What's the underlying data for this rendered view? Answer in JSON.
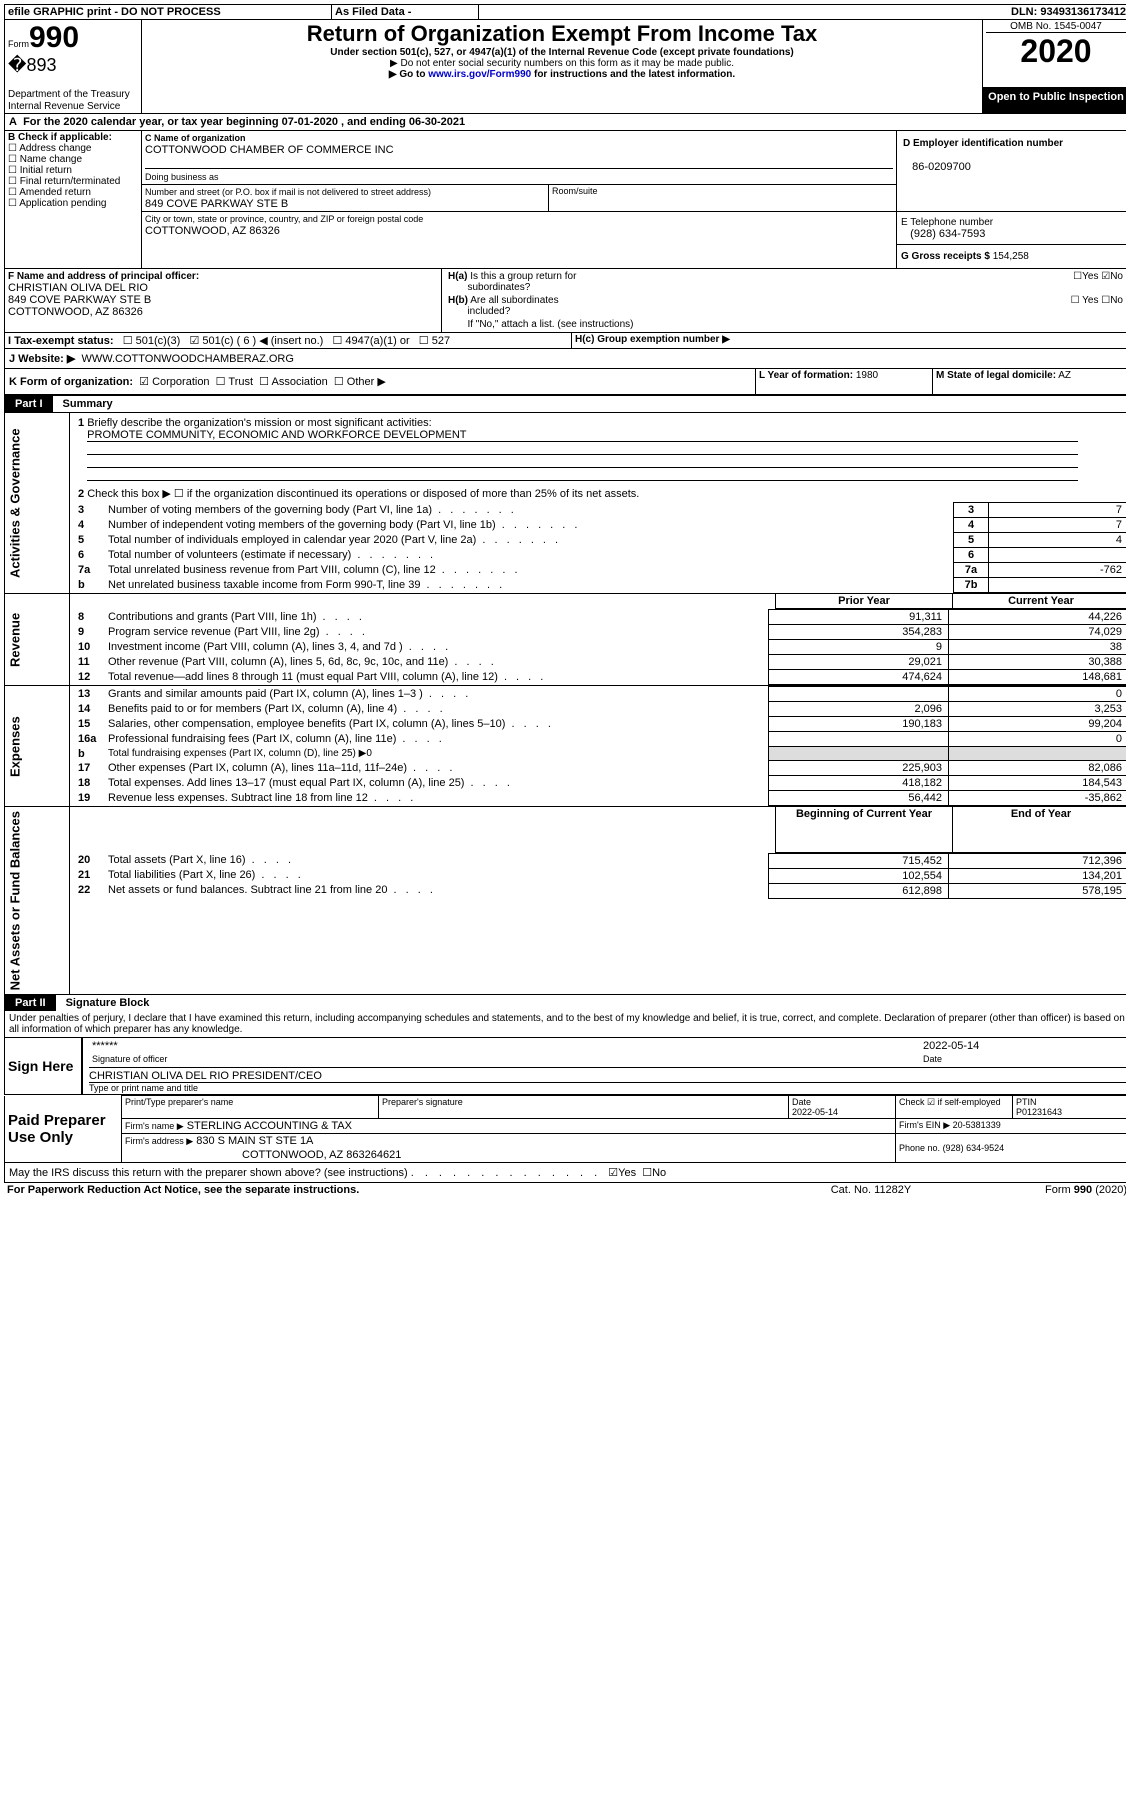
{
  "top_bar": {
    "efile": "efile GRAPHIC print - DO NOT PROCESS",
    "asfiled": "As Filed Data -",
    "dln_label": "DLN:",
    "dln": "93493136173412"
  },
  "header": {
    "form_label": "Form",
    "form_num": "990",
    "dept": "Department of the Treasury",
    "irs": "Internal Revenue Service",
    "title": "Return of Organization Exempt From Income Tax",
    "sub1": "Under section 501(c), 527, or 4947(a)(1) of the Internal Revenue Code (except private foundations)",
    "sub2": "▶ Do not enter social security numbers on this form as it may be made public.",
    "sub3_pre": "▶ Go to ",
    "sub3_link": "www.irs.gov/Form990",
    "sub3_post": " for instructions and the latest information.",
    "omb": "OMB No. 1545-0047",
    "year": "2020",
    "open": "Open to Public Inspection"
  },
  "A": {
    "text_pre": "For the 2020 calendar year, or tax year beginning ",
    "begin": "07-01-2020",
    "mid": " , and ending ",
    "end": "06-30-2021"
  },
  "B": {
    "label": "B Check if applicable:",
    "opts": [
      "Address change",
      "Name change",
      "Initial return",
      "Final return/terminated",
      "Amended return",
      "Application pending"
    ]
  },
  "C": {
    "label": "C Name of organization",
    "name": "COTTONWOOD CHAMBER OF COMMERCE INC",
    "dba_label": "Doing business as",
    "addr_label": "Number and street (or P.O. box if mail is not delivered to street address)",
    "room_label": "Room/suite",
    "addr": "849 COVE PARKWAY STE B",
    "city_label": "City or town, state or province, country, and ZIP or foreign postal code",
    "city": "COTTONWOOD, AZ  86326"
  },
  "D": {
    "label": "D Employer identification number",
    "val": "86-0209700"
  },
  "E": {
    "label": "E Telephone number",
    "val": "(928) 634-7593"
  },
  "G": {
    "label": "G Gross receipts $",
    "val": "154,258"
  },
  "F": {
    "label": "F  Name and address of principal officer:",
    "name": "CHRISTIAN OLIVA DEL RIO",
    "addr": "849 COVE PARKWAY STE B",
    "city": "COTTONWOOD, AZ  86326"
  },
  "H": {
    "a": "H(a)  Is this a group return for subordinates?",
    "b": "H(b)  Are all subordinates included?",
    "note": "If \"No,\" attach a list. (see instructions)",
    "c": "H(c)  Group exemption number ▶",
    "yes": "Yes",
    "no": "No"
  },
  "I": {
    "label": "I   Tax-exempt status:",
    "o1": "501(c)(3)",
    "o2": "501(c) ( 6 ) ◀ (insert no.)",
    "o3": "4947(a)(1) or",
    "o4": "527"
  },
  "J": {
    "label": "J   Website: ▶",
    "val": "WWW.COTTONWOODCHAMBERAZ.ORG"
  },
  "K": {
    "label": "K Form of organization:",
    "o1": "Corporation",
    "o2": "Trust",
    "o3": "Association",
    "o4": "Other ▶"
  },
  "L": {
    "label": "L Year of formation:",
    "val": "1980"
  },
  "M": {
    "label": "M State of legal domicile:",
    "val": "AZ"
  },
  "part1": {
    "num": "Part I",
    "title": "Summary"
  },
  "p1": {
    "l1": "Briefly describe the organization's mission or most significant activities:",
    "l1val": "PROMOTE COMMUNITY, ECONOMIC AND WORKFORCE DEVELOPMENT",
    "l2": "Check this box ▶ ☐ if the organization discontinued its operations or disposed of more than 25% of its net assets.",
    "rows_gov": [
      {
        "n": "3",
        "t": "Number of voting members of the governing body (Part VI, line 1a)",
        "c": "3",
        "v": "7"
      },
      {
        "n": "4",
        "t": "Number of independent voting members of the governing body (Part VI, line 1b)",
        "c": "4",
        "v": "7"
      },
      {
        "n": "5",
        "t": "Total number of individuals employed in calendar year 2020 (Part V, line 2a)",
        "c": "5",
        "v": "4"
      },
      {
        "n": "6",
        "t": "Total number of volunteers (estimate if necessary)",
        "c": "6",
        "v": ""
      },
      {
        "n": "7a",
        "t": "Total unrelated business revenue from Part VIII, column (C), line 12",
        "c": "7a",
        "v": "-762"
      },
      {
        "n": "b",
        "t": "Net unrelated business taxable income from Form 990-T, line 39",
        "c": "7b",
        "v": ""
      }
    ],
    "py": "Prior Year",
    "cy": "Current Year",
    "rev": [
      {
        "n": "8",
        "t": "Contributions and grants (Part VIII, line 1h)",
        "p": "91,311",
        "c": "44,226"
      },
      {
        "n": "9",
        "t": "Program service revenue (Part VIII, line 2g)",
        "p": "354,283",
        "c": "74,029"
      },
      {
        "n": "10",
        "t": "Investment income (Part VIII, column (A), lines 3, 4, and 7d )",
        "p": "9",
        "c": "38"
      },
      {
        "n": "11",
        "t": "Other revenue (Part VIII, column (A), lines 5, 6d, 8c, 9c, 10c, and 11e)",
        "p": "29,021",
        "c": "30,388"
      },
      {
        "n": "12",
        "t": "Total revenue—add lines 8 through 11 (must equal Part VIII, column (A), line 12)",
        "p": "474,624",
        "c": "148,681"
      }
    ],
    "exp": [
      {
        "n": "13",
        "t": "Grants and similar amounts paid (Part IX, column (A), lines 1–3 )",
        "p": "",
        "c": "0"
      },
      {
        "n": "14",
        "t": "Benefits paid to or for members (Part IX, column (A), line 4)",
        "p": "2,096",
        "c": "3,253"
      },
      {
        "n": "15",
        "t": "Salaries, other compensation, employee benefits (Part IX, column (A), lines 5–10)",
        "p": "190,183",
        "c": "99,204"
      },
      {
        "n": "16a",
        "t": "Professional fundraising fees (Part IX, column (A), line 11e)",
        "p": "",
        "c": "0"
      },
      {
        "n": "b",
        "t": "Total fundraising expenses (Part IX, column (D), line 25) ▶0",
        "p": null,
        "c": null
      },
      {
        "n": "17",
        "t": "Other expenses (Part IX, column (A), lines 11a–11d, 11f–24e)",
        "p": "225,903",
        "c": "82,086"
      },
      {
        "n": "18",
        "t": "Total expenses. Add lines 13–17 (must equal Part IX, column (A), line 25)",
        "p": "418,182",
        "c": "184,543"
      },
      {
        "n": "19",
        "t": "Revenue less expenses. Subtract line 18 from line 12",
        "p": "56,442",
        "c": "-35,862"
      }
    ],
    "bcy": "Beginning of Current Year",
    "eoy": "End of Year",
    "na": [
      {
        "n": "20",
        "t": "Total assets (Part X, line 16)",
        "p": "715,452",
        "c": "712,396"
      },
      {
        "n": "21",
        "t": "Total liabilities (Part X, line 26)",
        "p": "102,554",
        "c": "134,201"
      },
      {
        "n": "22",
        "t": "Net assets or fund balances. Subtract line 21 from line 20",
        "p": "612,898",
        "c": "578,195"
      }
    ],
    "side_gov": "Activities & Governance",
    "side_rev": "Revenue",
    "side_exp": "Expenses",
    "side_na": "Net Assets or Fund Balances"
  },
  "part2": {
    "num": "Part II",
    "title": "Signature Block"
  },
  "sig": {
    "decl": "Under penalties of perjury, I declare that I have examined this return, including accompanying schedules and statements, and to the best of my knowledge and belief, it is true, correct, and complete. Declaration of preparer (other than officer) is based on all information of which preparer has any knowledge.",
    "sign_here": "Sign Here",
    "stars": "******",
    "sig_of": "Signature of officer",
    "date_lbl": "Date",
    "date": "2022-05-14",
    "name": "CHRISTIAN OLIVA DEL RIO  PRESIDENT/CEO",
    "name_lbl": "Type or print name and title",
    "paid": "Paid Preparer Use Only",
    "prep_name_lbl": "Print/Type preparer's name",
    "prep_sig_lbl": "Preparer's signature",
    "prep_date": "2022-05-14",
    "self_emp": "Check ☑ if self-employed",
    "ptin_lbl": "PTIN",
    "ptin": "P01231643",
    "firm_name_lbl": "Firm's name   ▶",
    "firm_name": "STERLING ACCOUNTING & TAX",
    "firm_ein_lbl": "Firm's EIN ▶",
    "firm_ein": "20-5381339",
    "firm_addr_lbl": "Firm's address ▶",
    "firm_addr": "830 S MAIN ST STE 1A",
    "firm_city": "COTTONWOOD, AZ  863264621",
    "phone_lbl": "Phone no.",
    "phone": "(928) 634-9524",
    "discuss": "May the IRS discuss this return with the preparer shown above? (see instructions)",
    "yes": "Yes",
    "no": "No"
  },
  "footer": {
    "pra": "For Paperwork Reduction Act Notice, see the separate instructions.",
    "cat": "Cat. No. 11282Y",
    "form": "Form 990 (2020)"
  }
}
